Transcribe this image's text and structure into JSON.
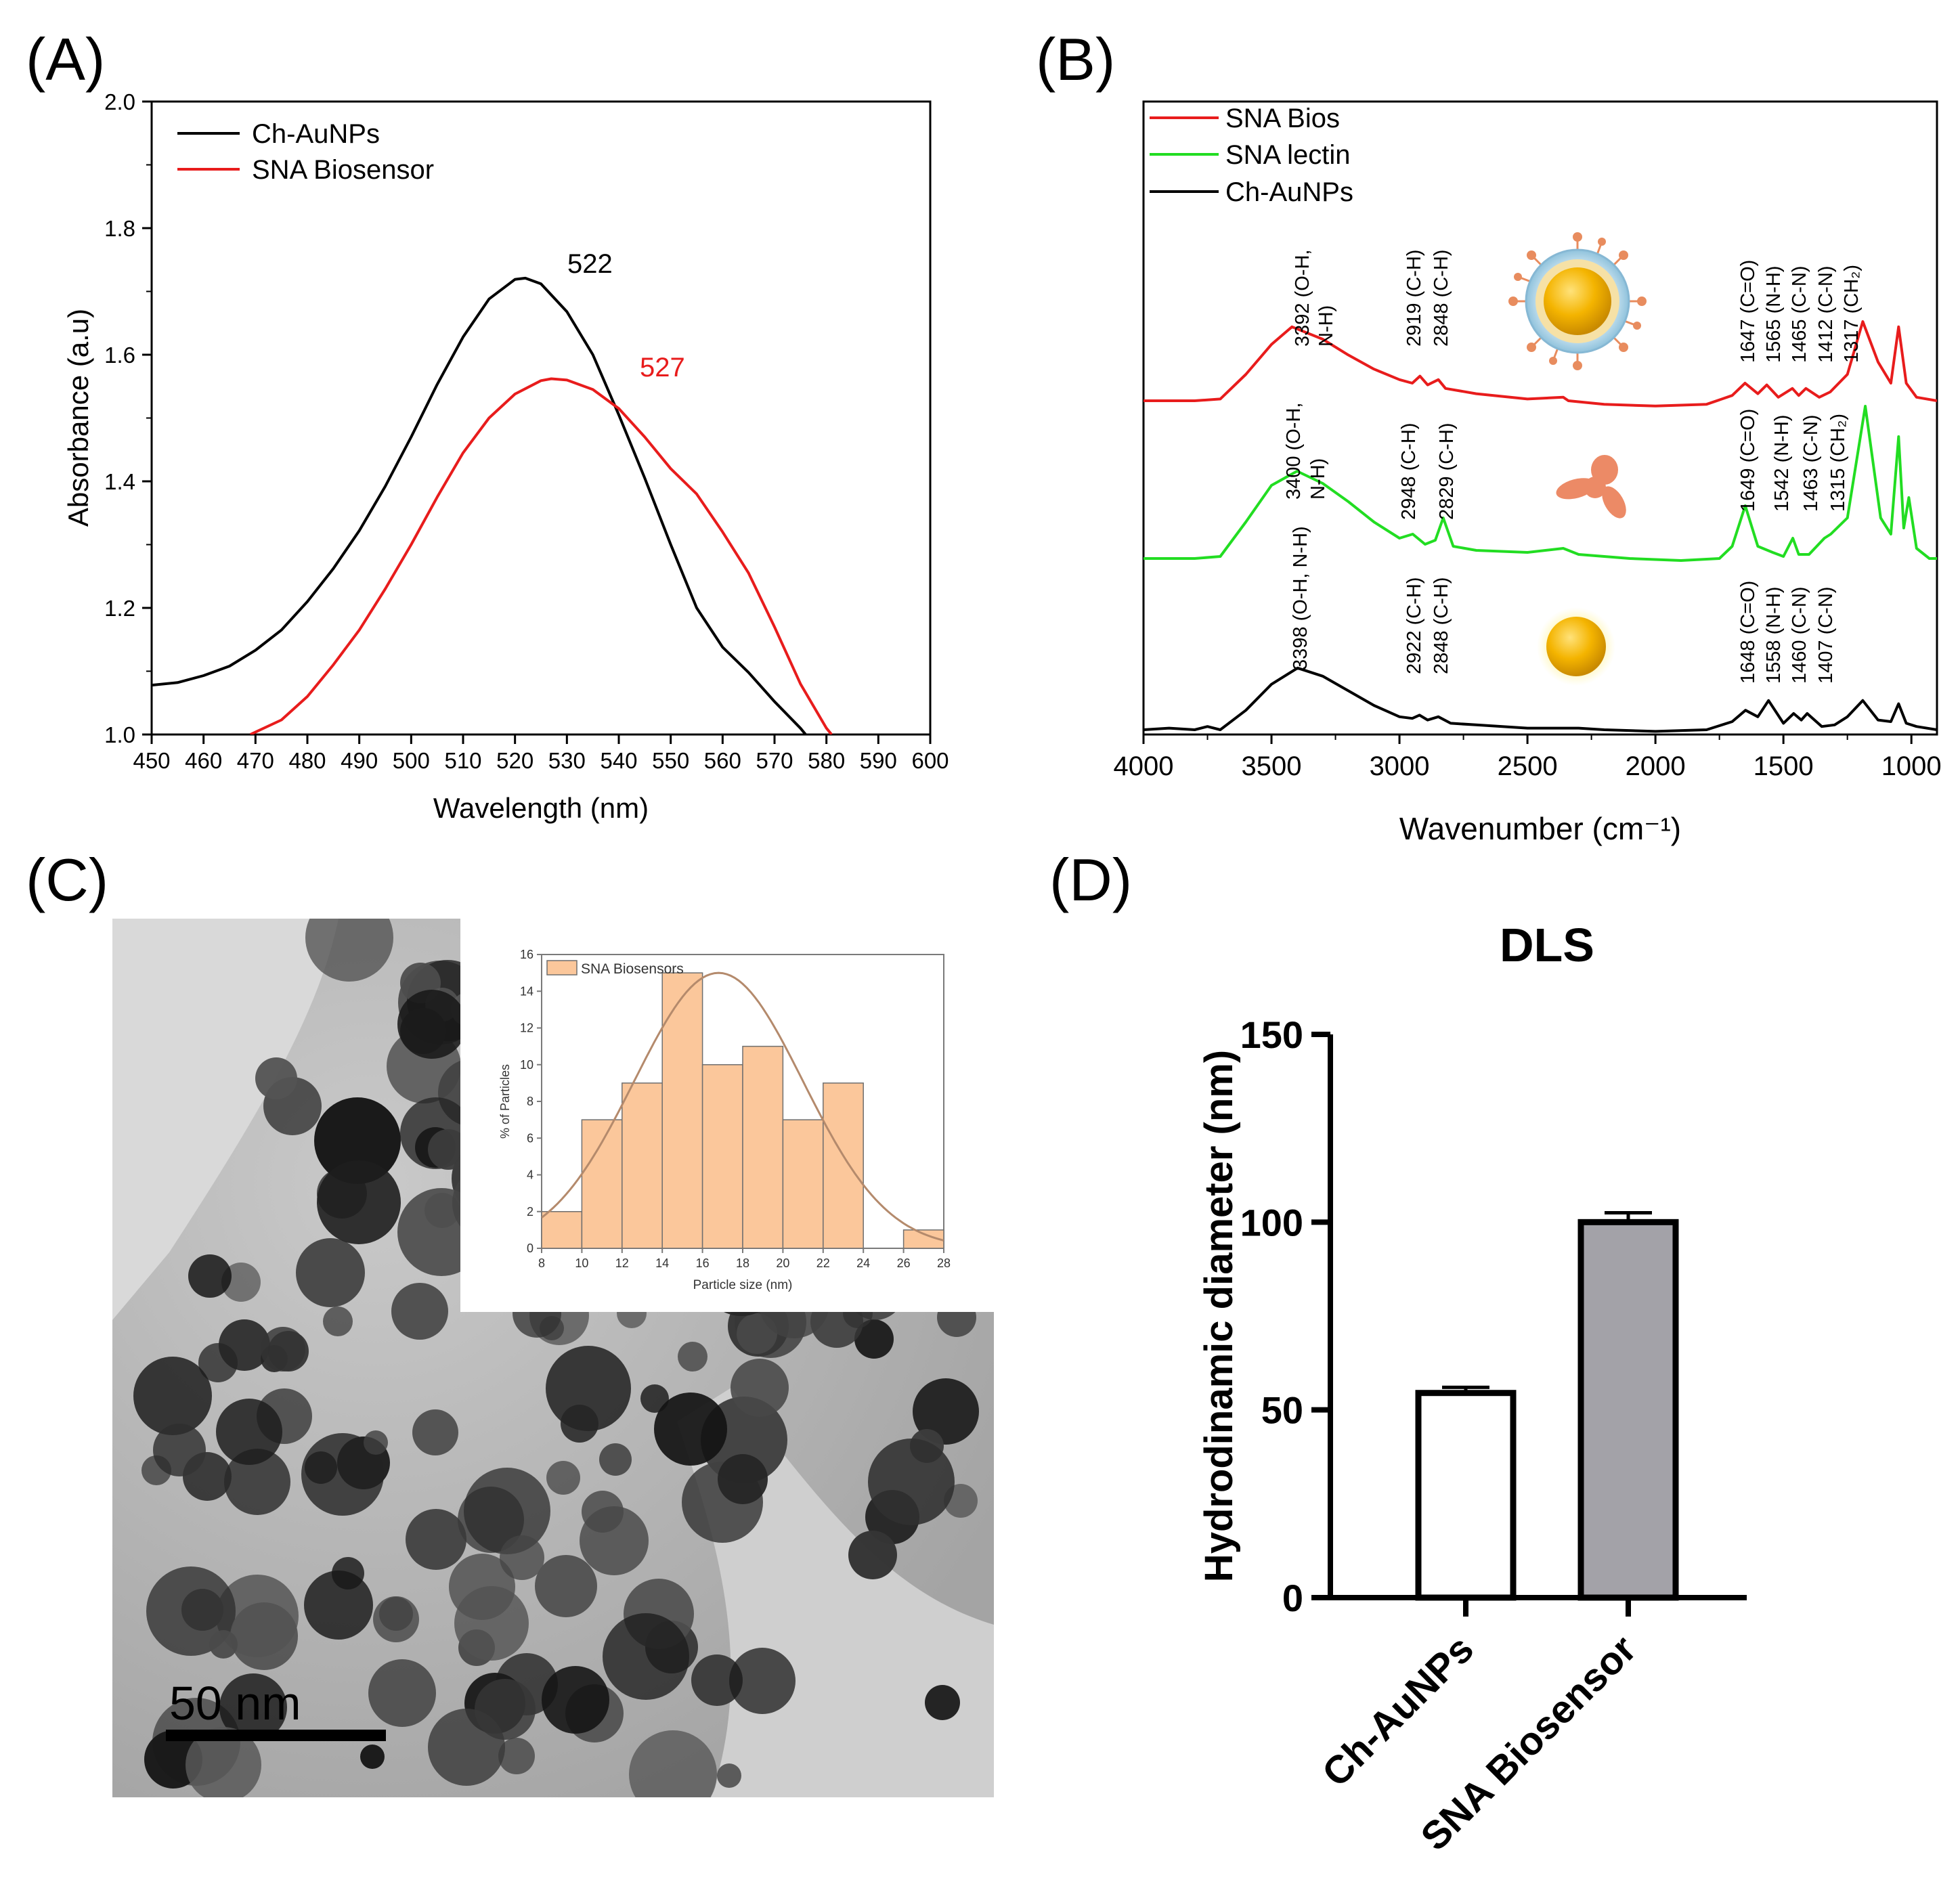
{
  "panels": {
    "A": "(A)",
    "B": "(B)",
    "C": "(C)",
    "D": "(D)"
  },
  "colors": {
    "black": "#000000",
    "red": "#e81c1c",
    "green": "#22dd22",
    "hist_fill": "#fbc79b",
    "hist_edge": "#6f6f6f",
    "fit_line": "#b48a6c",
    "bar_white": "#ffffff",
    "bar_gray": "#a3a2a8",
    "gold": "#f4b400"
  },
  "icons": {
    "B_top": "coated-gold-nanoparticle-icon",
    "B_mid": "lectin-protein-icon",
    "B_bot": "gold-nanoparticle-icon"
  },
  "chart_data": [
    {
      "id": "A",
      "type": "line",
      "xlabel": "Wavelength (nm)",
      "ylabel": "Absorbance (a.u)",
      "xlim": [
        450,
        600
      ],
      "ylim": [
        1.0,
        2.0
      ],
      "xticks": [
        "450",
        "460",
        "470",
        "480",
        "490",
        "500",
        "510",
        "520",
        "530",
        "540",
        "550",
        "560",
        "570",
        "580",
        "590",
        "600"
      ],
      "yticks": [
        "1.0",
        "1.2",
        "1.4",
        "1.6",
        "1.8",
        "2.0"
      ],
      "legend": [
        "Ch-AuNPs",
        "SNA Biosensor"
      ],
      "annotations": [
        "522",
        "527"
      ],
      "series": [
        {
          "name": "Ch-AuNPs",
          "color": "#000000",
          "x": [
            450,
            455,
            460,
            465,
            470,
            475,
            480,
            485,
            490,
            495,
            500,
            505,
            510,
            515,
            520,
            522,
            525,
            530,
            535,
            540,
            545,
            550,
            555,
            560,
            565,
            570,
            575,
            576
          ],
          "y": [
            1.078,
            1.082,
            1.093,
            1.108,
            1.133,
            1.165,
            1.21,
            1.262,
            1.322,
            1.392,
            1.47,
            1.553,
            1.628,
            1.688,
            1.719,
            1.721,
            1.712,
            1.668,
            1.6,
            1.505,
            1.405,
            1.3,
            1.2,
            1.138,
            1.098,
            1.052,
            1.01,
            1.0
          ]
        },
        {
          "name": "SNA Biosensor",
          "color": "#e81c1c",
          "x": [
            469,
            475,
            480,
            485,
            490,
            495,
            500,
            505,
            510,
            515,
            520,
            525,
            527,
            530,
            535,
            540,
            545,
            550,
            555,
            560,
            565,
            570,
            575,
            580,
            581
          ],
          "y": [
            1.0,
            1.023,
            1.06,
            1.11,
            1.165,
            1.23,
            1.3,
            1.375,
            1.445,
            1.5,
            1.538,
            1.559,
            1.562,
            1.56,
            1.545,
            1.515,
            1.47,
            1.42,
            1.38,
            1.32,
            1.255,
            1.17,
            1.08,
            1.01,
            1.0
          ]
        }
      ]
    },
    {
      "id": "B",
      "type": "line",
      "xlabel": "Wavenumber (cm⁻¹)",
      "xlim": [
        4000,
        900
      ],
      "xticks": [
        "4000",
        "3500",
        "3000",
        "2500",
        "2000",
        "1500",
        "1000"
      ],
      "legend": [
        "SNA Bios",
        "SNA lectin",
        "Ch-AuNPs"
      ],
      "series": [
        {
          "name": "SNA Bios",
          "color": "#e81c1c",
          "x": [
            4000,
            3800,
            3700,
            3600,
            3500,
            3420,
            3300,
            3200,
            3100,
            3000,
            2950,
            2920,
            2890,
            2848,
            2820,
            2700,
            2500,
            2360,
            2340,
            2200,
            2000,
            1800,
            1700,
            1650,
            1600,
            1565,
            1520,
            1465,
            1440,
            1412,
            1360,
            1317,
            1250,
            1190,
            1130,
            1080,
            1050,
            1020,
            980,
            900
          ],
          "y": [
            0.0,
            0.0,
            0.01,
            0.15,
            0.32,
            0.42,
            0.35,
            0.26,
            0.18,
            0.12,
            0.1,
            0.14,
            0.09,
            0.12,
            0.07,
            0.04,
            0.01,
            0.02,
            0.0,
            -0.02,
            -0.03,
            -0.02,
            0.03,
            0.1,
            0.04,
            0.09,
            0.02,
            0.07,
            0.03,
            0.07,
            0.02,
            0.05,
            0.15,
            0.45,
            0.22,
            0.1,
            0.42,
            0.1,
            0.02,
            0.0
          ]
        },
        {
          "name": "SNA lectin",
          "color": "#22dd22",
          "x": [
            4000,
            3800,
            3700,
            3600,
            3500,
            3400,
            3300,
            3200,
            3100,
            3000,
            2948,
            2900,
            2860,
            2829,
            2790,
            2700,
            2500,
            2360,
            2300,
            2100,
            1900,
            1750,
            1700,
            1649,
            1600,
            1542,
            1500,
            1463,
            1440,
            1400,
            1340,
            1315,
            1250,
            1180,
            1120,
            1080,
            1050,
            1030,
            1010,
            980,
            930,
            900
          ],
          "y": [
            0.0,
            0.0,
            0.01,
            0.18,
            0.36,
            0.43,
            0.37,
            0.28,
            0.18,
            0.1,
            0.12,
            0.07,
            0.09,
            0.2,
            0.06,
            0.04,
            0.03,
            0.05,
            0.02,
            0.0,
            -0.01,
            0.0,
            0.06,
            0.26,
            0.06,
            0.03,
            0.01,
            0.1,
            0.02,
            0.02,
            0.1,
            0.12,
            0.2,
            0.75,
            0.2,
            0.12,
            0.6,
            0.15,
            0.3,
            0.05,
            0.0,
            0.0
          ]
        },
        {
          "name": "Ch-AuNPs",
          "color": "#000000",
          "x": [
            4000,
            3900,
            3800,
            3750,
            3700,
            3600,
            3500,
            3398,
            3300,
            3200,
            3100,
            3000,
            2950,
            2922,
            2890,
            2848,
            2800,
            2700,
            2500,
            2300,
            2200,
            2000,
            1800,
            1700,
            1648,
            1600,
            1558,
            1500,
            1460,
            1430,
            1407,
            1350,
            1300,
            1250,
            1190,
            1130,
            1080,
            1050,
            1020,
            980,
            900
          ],
          "y": [
            0.0,
            0.01,
            0.0,
            0.02,
            0.0,
            0.12,
            0.28,
            0.38,
            0.33,
            0.24,
            0.15,
            0.08,
            0.07,
            0.09,
            0.06,
            0.08,
            0.04,
            0.03,
            0.01,
            0.01,
            0.0,
            -0.01,
            0.0,
            0.05,
            0.12,
            0.08,
            0.18,
            0.04,
            0.1,
            0.06,
            0.1,
            0.02,
            0.03,
            0.08,
            0.18,
            0.06,
            0.05,
            0.16,
            0.04,
            0.02,
            0.0
          ]
        }
      ],
      "labels_bios": [
        "3392 (O-H,",
        "N-H)",
        "2919 (C-H)",
        "2848 (C-H)",
        "1647 (C=O)",
        "1565 (N-H)",
        "1465 (C-N)",
        "1412 (C-N)",
        "1317 (CH₂)"
      ],
      "labels_lectin": [
        "3400 (O-H,",
        "N-H)",
        "2948 (C-H)",
        "2829 (C-H)",
        "1649 (C=O)",
        "1542 (N-H)",
        "1463 (C-N)",
        "1315 (CH₂)"
      ],
      "labels_aunp": [
        "3398 (O-H, N-H)",
        "2922 (C-H)",
        "2848 (C-H)",
        "1648 (C=O)",
        "1558 (N-H)",
        "1460 (C-N)",
        "1407 (C-N)"
      ]
    },
    {
      "id": "C_inset",
      "type": "bar",
      "xlabel": "Particle size (nm)",
      "ylabel": "% of Particles",
      "legend": [
        "SNA Biosensors"
      ],
      "bin_edges": [
        8,
        10,
        12,
        14,
        16,
        18,
        20,
        22,
        24,
        26,
        28
      ],
      "values": [
        2,
        7,
        9,
        15,
        10,
        11,
        7,
        9,
        0,
        1
      ],
      "xlim": [
        8,
        28
      ],
      "ylim": [
        0,
        16
      ],
      "xticks": [
        "8",
        "10",
        "12",
        "14",
        "16",
        "18",
        "20",
        "22",
        "24",
        "26",
        "28"
      ],
      "yticks": [
        "0",
        "2",
        "4",
        "6",
        "8",
        "10",
        "12",
        "14",
        "16"
      ],
      "fit": {
        "type": "gaussian",
        "mean": 16.8,
        "sd": 4.2,
        "peak": 15.0
      }
    },
    {
      "id": "D",
      "type": "bar",
      "title": "DLS",
      "ylabel": "Hydrodinamic diameter (nm)",
      "categories": [
        "Ch-AuNPs",
        "SNA Biosensor"
      ],
      "values": [
        54.5,
        100
      ],
      "errors": [
        1.5,
        2.5
      ],
      "ylim": [
        0,
        150
      ],
      "yticks": [
        "0",
        "50",
        "100",
        "150"
      ]
    }
  ],
  "tem": {
    "scale_bar_label": "50 nm"
  }
}
